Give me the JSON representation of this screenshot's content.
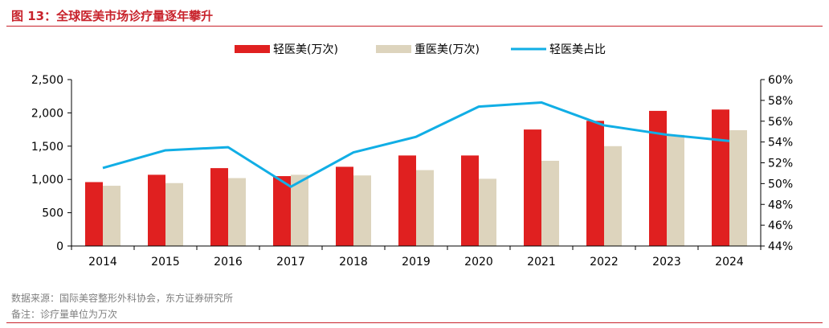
{
  "figure": {
    "title": "图 13：全球医美市场诊疗量逐年攀升",
    "source": "数据来源：国际美容整形外科协会，东方证券研究所",
    "note": "备注：诊疗量单位为万次"
  },
  "colors": {
    "accent": "#c8232c",
    "series_light": "#e02020",
    "series_heavy": "#ddd4bd",
    "series_share": "#11aee5"
  },
  "chart_data": {
    "type": "bar",
    "categories": [
      "2014",
      "2015",
      "2016",
      "2017",
      "2018",
      "2019",
      "2020",
      "2021",
      "2022",
      "2023",
      "2024"
    ],
    "series": [
      {
        "name": "轻医美(万次)",
        "type": "bar",
        "axis": "left",
        "color": "#e02020",
        "values": [
          960,
          1070,
          1170,
          1050,
          1190,
          1360,
          1360,
          1750,
          1880,
          2030,
          2050
        ]
      },
      {
        "name": "重医美(万次)",
        "type": "bar",
        "axis": "left",
        "color": "#ddd4bd",
        "values": [
          905,
          945,
          1020,
          1070,
          1060,
          1140,
          1010,
          1280,
          1500,
          1670,
          1740
        ]
      },
      {
        "name": "轻医美占比",
        "type": "line",
        "axis": "right",
        "color": "#11aee5",
        "values": [
          51.5,
          53.2,
          53.5,
          49.7,
          53.0,
          54.5,
          57.4,
          57.8,
          55.6,
          54.7,
          54.1
        ]
      }
    ],
    "ylim": [
      0,
      2500
    ],
    "y_ticks": [
      "0",
      "500",
      "1,000",
      "1,500",
      "2,000",
      "2,500"
    ],
    "y2lim": [
      44,
      60
    ],
    "y2_ticks": [
      "44%",
      "46%",
      "48%",
      "50%",
      "52%",
      "54%",
      "56%",
      "58%",
      "60%"
    ],
    "grid": false,
    "legend_position": "top-center"
  }
}
